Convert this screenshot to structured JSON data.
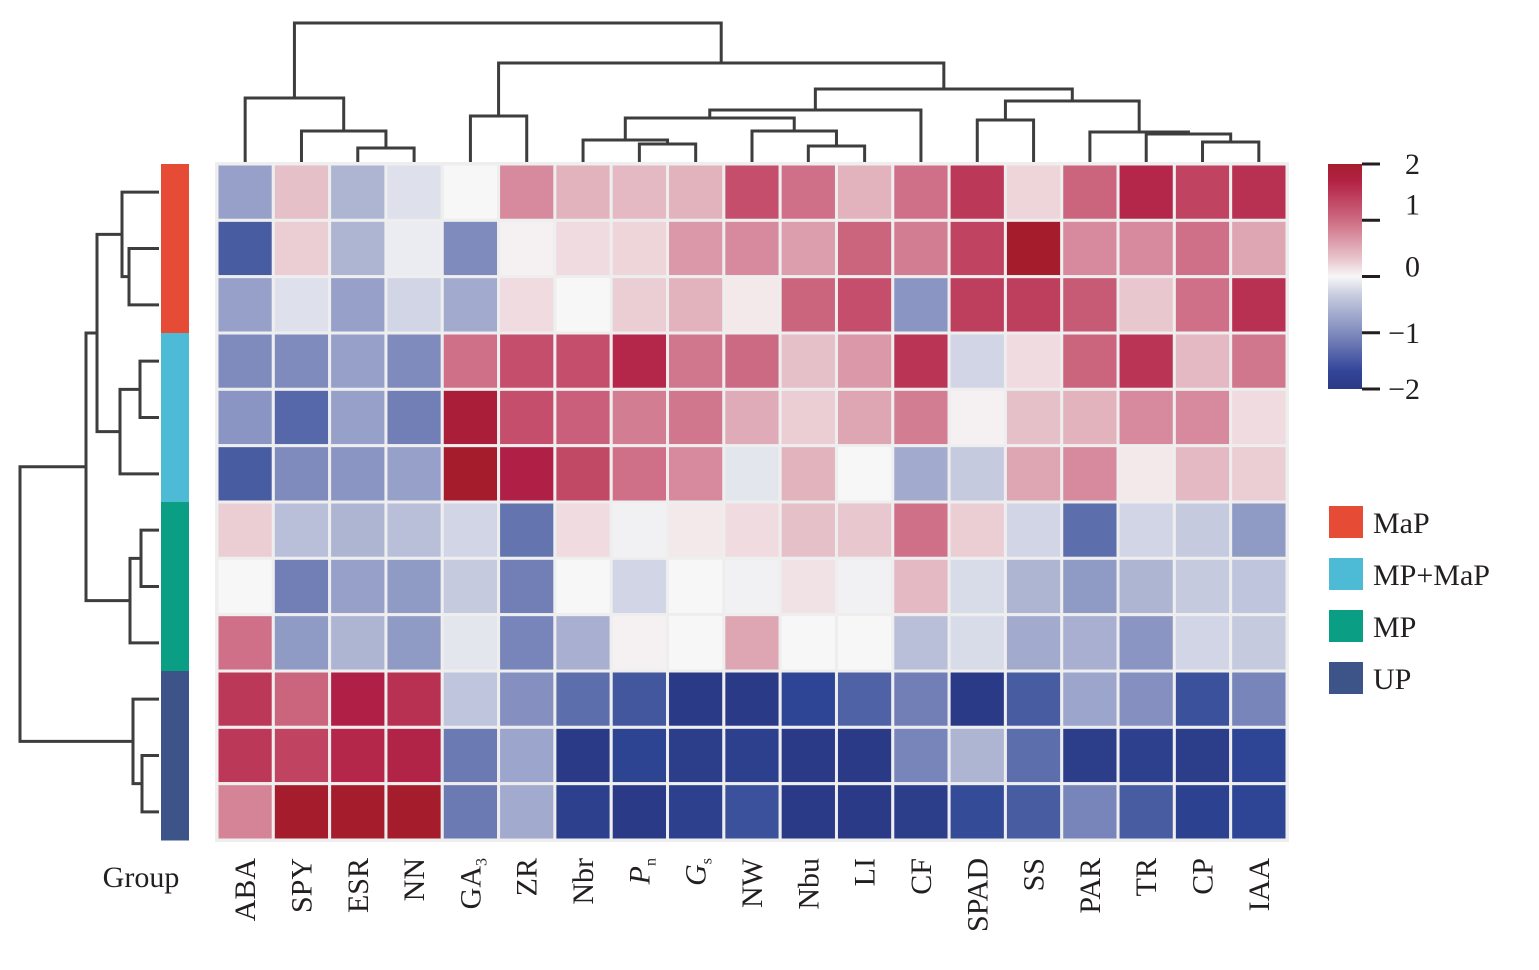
{
  "chart_data": {
    "type": "heatmap",
    "title": "",
    "columns": [
      "ABA",
      "SPY",
      "ESR",
      "NN",
      "GA3",
      "ZR",
      "Nbr",
      "Pn",
      "Gs",
      "NW",
      "Nbu",
      "LI",
      "CF",
      "SPAD",
      "SS",
      "PAR",
      "TR",
      "CP",
      "IAA"
    ],
    "column_labels": [
      {
        "main": "ABA",
        "sub": "",
        "italic": false
      },
      {
        "main": "SPY",
        "sub": "",
        "italic": false
      },
      {
        "main": "ESR",
        "sub": "",
        "italic": false
      },
      {
        "main": "NN",
        "sub": "",
        "italic": false
      },
      {
        "main": "GA",
        "sub": "3",
        "italic": false
      },
      {
        "main": "ZR",
        "sub": "",
        "italic": false
      },
      {
        "main": "Nbr",
        "sub": "",
        "italic": false
      },
      {
        "main": "P",
        "sub": "n",
        "italic": true
      },
      {
        "main": "G",
        "sub": "s",
        "italic": true
      },
      {
        "main": "NW",
        "sub": "",
        "italic": false
      },
      {
        "main": "Nbu",
        "sub": "",
        "italic": false
      },
      {
        "main": "LI",
        "sub": "",
        "italic": false
      },
      {
        "main": "CF",
        "sub": "",
        "italic": false
      },
      {
        "main": "SPAD",
        "sub": "",
        "italic": false
      },
      {
        "main": "SS",
        "sub": "",
        "italic": false
      },
      {
        "main": "PAR",
        "sub": "",
        "italic": false
      },
      {
        "main": "TR",
        "sub": "",
        "italic": false
      },
      {
        "main": "CP",
        "sub": "",
        "italic": false
      },
      {
        "main": "IAA",
        "sub": "",
        "italic": false
      }
    ],
    "row_groups": [
      "MaP",
      "MaP",
      "MaP",
      "MP+MaP",
      "MP+MaP",
      "MP+MaP",
      "MP",
      "MP",
      "MP",
      "UP",
      "UP",
      "UP"
    ],
    "values": [
      [
        -0.8,
        0.4,
        -0.6,
        -0.2,
        0.0,
        0.8,
        0.5,
        0.45,
        0.5,
        1.3,
        1.0,
        0.5,
        1.0,
        1.5,
        0.25,
        1.1,
        1.7,
        1.4,
        1.6
      ],
      [
        -1.4,
        0.3,
        -0.6,
        -0.1,
        -1.0,
        0.05,
        0.2,
        0.25,
        0.7,
        0.8,
        0.65,
        1.1,
        0.9,
        1.4,
        2.0,
        0.8,
        0.8,
        1.0,
        0.6
      ],
      [
        -0.8,
        -0.2,
        -0.8,
        -0.3,
        -0.7,
        0.2,
        0.0,
        0.3,
        0.5,
        0.1,
        1.1,
        1.3,
        -0.9,
        1.45,
        1.45,
        1.2,
        0.35,
        1.0,
        1.6
      ],
      [
        -1.0,
        -1.0,
        -0.8,
        -1.0,
        1.0,
        1.3,
        1.3,
        1.7,
        0.95,
        1.05,
        0.4,
        0.7,
        1.55,
        -0.3,
        0.2,
        1.1,
        1.55,
        0.45,
        0.95
      ],
      [
        -0.9,
        -1.3,
        -0.8,
        -1.1,
        1.9,
        1.3,
        1.15,
        0.9,
        0.95,
        0.55,
        0.3,
        0.6,
        0.9,
        0.05,
        0.4,
        0.5,
        0.8,
        0.8,
        0.2
      ],
      [
        -1.4,
        -1.0,
        -0.9,
        -0.8,
        2.0,
        1.8,
        1.35,
        1.0,
        0.8,
        -0.15,
        0.5,
        0.0,
        -0.7,
        -0.4,
        0.6,
        0.8,
        0.1,
        0.45,
        0.3
      ],
      [
        0.3,
        -0.5,
        -0.6,
        -0.5,
        -0.3,
        -1.2,
        0.2,
        -0.05,
        0.1,
        0.2,
        0.4,
        0.35,
        1.0,
        0.3,
        -0.3,
        -1.25,
        -0.3,
        -0.4,
        -0.85
      ],
      [
        0.0,
        -1.1,
        -0.8,
        -0.85,
        -0.4,
        -1.1,
        0.0,
        -0.3,
        0.0,
        -0.05,
        0.15,
        -0.05,
        0.45,
        -0.25,
        -0.6,
        -0.85,
        -0.6,
        -0.4,
        -0.45
      ],
      [
        1.0,
        -0.85,
        -0.6,
        -0.85,
        -0.15,
        -1.05,
        -0.65,
        0.05,
        0.0,
        0.6,
        0.0,
        0.0,
        -0.5,
        -0.25,
        -0.7,
        -0.65,
        -0.9,
        -0.3,
        -0.4
      ],
      [
        1.5,
        1.1,
        1.8,
        1.6,
        -0.45,
        -0.95,
        -1.25,
        -1.45,
        -2.0,
        -2.0,
        -1.6,
        -1.35,
        -1.1,
        -2.0,
        -1.4,
        -0.75,
        -0.95,
        -1.5,
        -1.05
      ],
      [
        1.5,
        1.4,
        1.7,
        1.75,
        -1.15,
        -0.75,
        -2.0,
        -1.65,
        -1.9,
        -1.8,
        -2.0,
        -2.0,
        -1.05,
        -0.6,
        -1.25,
        -1.9,
        -1.8,
        -1.9,
        -1.6
      ],
      [
        0.85,
        2.0,
        2.0,
        2.0,
        -1.15,
        -0.7,
        -1.8,
        -2.0,
        -1.8,
        -1.5,
        -2.0,
        -2.0,
        -1.9,
        -1.55,
        -1.4,
        -1.05,
        -1.4,
        -1.75,
        -1.6
      ]
    ],
    "color_range": [
      -2,
      2
    ],
    "colormap": {
      "low": "#2b3a86",
      "mid": "#f7f7f7",
      "high": "#a51c2d"
    },
    "colorbar": {
      "ticks": [
        2,
        1,
        0,
        -1,
        -2
      ],
      "tick_labels": [
        "2",
        "1",
        "0",
        "−1",
        "−2"
      ],
      "placement": "top-right"
    },
    "group_label": "Group",
    "legend": {
      "placement": "right",
      "entries": [
        {
          "name": "MaP",
          "color": "#e64b35"
        },
        {
          "name": "MP+MaP",
          "color": "#4dbbd5"
        },
        {
          "name": "MP",
          "color": "#0a9e84"
        },
        {
          "name": "UP",
          "color": "#3c5488"
        }
      ]
    },
    "row_dendrogram": {
      "orientation": "left",
      "merges": [
        {
          "a": "r1",
          "b": "r2",
          "note": "r2-r3 join first, then r1"
        },
        {
          "clusters": [
            [
              "r2",
              "r3"
            ],
            [
              "r1",
              [
                "r2",
                "r3"
              ]
            ],
            [
              "r4",
              "r5"
            ],
            [
              [
                "r4",
                "r5"
              ],
              "r6"
            ],
            [
              [
                "r1",
                "r2",
                "r3"
              ],
              [
                "r4",
                "r5",
                "r6"
              ]
            ],
            [
              "r7",
              "r8"
            ],
            [
              [
                "r7",
                "r8"
              ],
              "r9"
            ],
            [
              [
                "r1..r6"
              ],
              [
                "r7..r9"
              ]
            ],
            [
              "r11",
              "r12"
            ],
            [
              "r10",
              [
                "r11",
                "r12"
              ]
            ],
            [
              [
                "r1..r9"
              ],
              [
                "r10..r12"
              ]
            ]
          ]
        }
      ]
    },
    "col_dendrogram": {
      "orientation": "top",
      "clusters": [
        [
          "ESR",
          "NN"
        ],
        [
          "SPY",
          [
            "ESR",
            "NN"
          ]
        ],
        [
          "ABA",
          [
            "SPY",
            "ESR",
            "NN"
          ]
        ],
        [
          "GA3",
          "ZR"
        ],
        [
          "Pn",
          "Gs"
        ],
        [
          "Nbr",
          [
            "Pn",
            "Gs"
          ]
        ],
        [
          "LI",
          "CF"
        ],
        [
          "Nbu",
          [
            "LI",
            "CF"
          ]
        ],
        [
          "NW",
          [
            "Nbu",
            "LI",
            "CF"
          ]
        ],
        [
          [
            "Nbr",
            "Pn",
            "Gs"
          ],
          [
            "NW",
            "Nbu",
            "LI",
            "CF"
          ]
        ],
        [
          [
            "Nbr..LI"
          ],
          "CF"
        ],
        [
          "SPAD",
          "SS"
        ],
        [
          "CP",
          "IAA"
        ],
        [
          "TR",
          [
            "CP",
            "IAA"
          ]
        ],
        [
          "PAR",
          [
            "TR",
            "CP",
            "IAA"
          ]
        ],
        [
          [
            "SPAD",
            "SS"
          ],
          [
            "PAR",
            "TR",
            "CP",
            "IAA"
          ]
        ],
        [
          [
            "Nbr..CF"
          ],
          [
            "SPAD..IAA"
          ]
        ],
        [
          [
            "GA3",
            "ZR"
          ],
          [
            "Nbr..IAA"
          ]
        ],
        [
          [
            "ABA..NN"
          ],
          [
            "GA3..IAA"
          ]
        ]
      ]
    }
  }
}
